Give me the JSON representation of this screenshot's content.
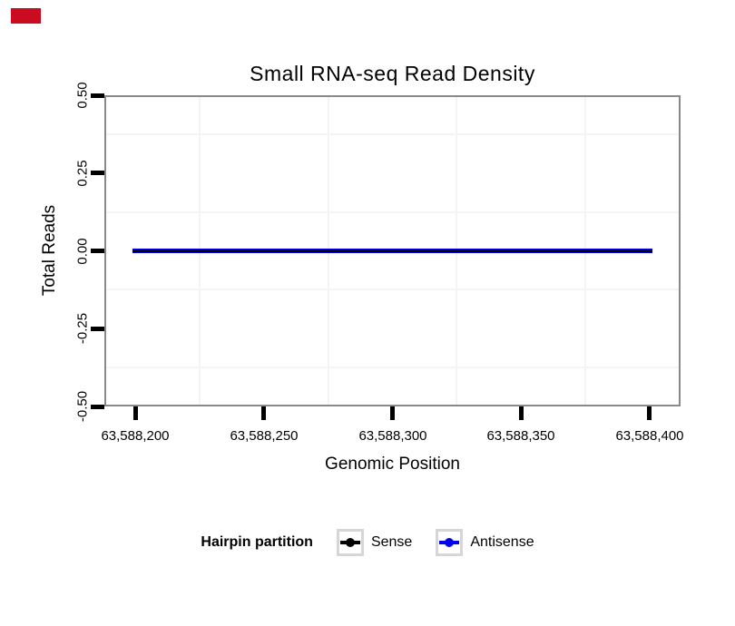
{
  "marker": {
    "color": "#cb0b20"
  },
  "chart_data": {
    "type": "line",
    "title": "Small RNA-seq Read Density",
    "xlabel": "Genomic Position",
    "ylabel": "Total Reads",
    "xlim": [
      63588188,
      63588412
    ],
    "ylim": [
      -0.5,
      0.5
    ],
    "xticks": [
      {
        "value": 63588200,
        "label": "63,588,200"
      },
      {
        "value": 63588250,
        "label": "63,588,250"
      },
      {
        "value": 63588300,
        "label": "63,588,300"
      },
      {
        "value": 63588350,
        "label": "63,588,350"
      },
      {
        "value": 63588400,
        "label": "63,588,400"
      }
    ],
    "yticks": [
      {
        "value": 0.5,
        "label": "0.50"
      },
      {
        "value": 0.25,
        "label": "0.25"
      },
      {
        "value": 0.0,
        "label": "0.00"
      },
      {
        "value": -0.25,
        "label": "-0.25"
      },
      {
        "value": -0.5,
        "label": "-0.50"
      }
    ],
    "grid": "minor gridlines only, at midpoints between ticks",
    "legend": {
      "title": "Hairpin partition",
      "position": "bottom",
      "entries": [
        {
          "label": "Sense",
          "color": "#000000"
        },
        {
          "label": "Antisense",
          "color": "#0000ee"
        }
      ]
    },
    "series": [
      {
        "name": "Sense",
        "color": "#000000",
        "linewidth": 3,
        "points": [
          [
            63588199,
            0
          ],
          [
            63588401,
            0
          ]
        ]
      },
      {
        "name": "Antisense",
        "color": "#0000ee",
        "linewidth": 5,
        "points": [
          [
            63588199,
            0
          ],
          [
            63588401,
            0
          ]
        ]
      }
    ],
    "colors": {
      "panel_border": "#898989",
      "grid": "#f4f4f4",
      "legend_key_border": "#d6d6d6",
      "background": "#ffffff"
    }
  }
}
